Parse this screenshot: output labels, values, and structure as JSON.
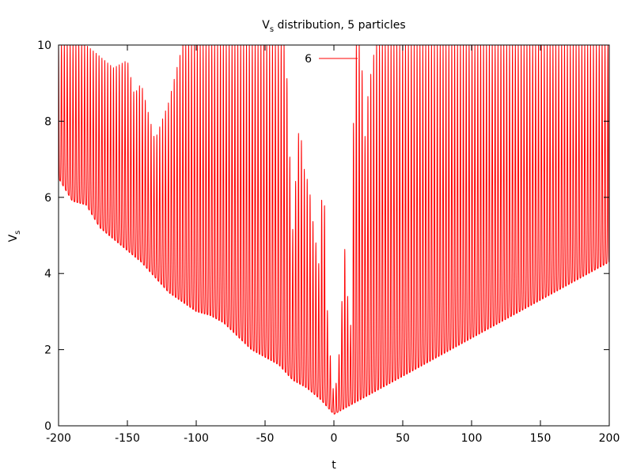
{
  "chart_data": {
    "type": "line",
    "title": {
      "main": "V",
      "sub": "s",
      "rest": " distribution, 5 particles"
    },
    "xlabel": "t",
    "ylabel": {
      "main": "V",
      "sub": "s"
    },
    "xlim": [
      -200,
      200
    ],
    "ylim": [
      0,
      10
    ],
    "xticks": [
      -200,
      -150,
      -100,
      -50,
      0,
      50,
      100,
      150,
      200
    ],
    "xtick_labels": [
      "-200",
      "-150",
      "-100",
      "-50",
      "0",
      "50",
      "100",
      "150",
      "200"
    ],
    "yticks": [
      0,
      2,
      4,
      6,
      8,
      10
    ],
    "ytick_labels": [
      "0",
      "2",
      "4",
      "6",
      "8",
      "10"
    ],
    "grid": false,
    "legend_position": "top-center",
    "series": [
      {
        "name": "6",
        "color": "#ff0000",
        "minima": [
          [
            -200,
            6.5
          ],
          [
            -190,
            5.9
          ],
          [
            -180,
            5.8
          ],
          [
            -170,
            5.2
          ],
          [
            -160,
            4.9
          ],
          [
            -150,
            4.6
          ],
          [
            -140,
            4.3
          ],
          [
            -130,
            3.9
          ],
          [
            -120,
            3.5
          ],
          [
            -100,
            3.0
          ],
          [
            -90,
            2.9
          ],
          [
            -80,
            2.7
          ],
          [
            -60,
            2.0
          ],
          [
            -40,
            1.6
          ],
          [
            -30,
            1.2
          ],
          [
            -20,
            1.0
          ],
          [
            -10,
            0.7
          ],
          [
            0,
            0.3
          ],
          [
            5,
            0.4
          ],
          [
            50,
            1.3
          ],
          [
            100,
            2.3
          ],
          [
            150,
            3.3
          ],
          [
            200,
            4.3
          ]
        ],
        "peaks": [
          [
            -200,
            10
          ],
          [
            -190,
            10
          ],
          [
            -180,
            10
          ],
          [
            -170,
            9.7
          ],
          [
            -160,
            9.4
          ],
          [
            -150,
            9.6
          ],
          [
            -145,
            8.7
          ],
          [
            -140,
            9.0
          ],
          [
            -130,
            7.5
          ],
          [
            -120,
            8.5
          ],
          [
            -110,
            10
          ],
          [
            -100,
            10
          ],
          [
            -80,
            10
          ],
          [
            -60,
            10
          ],
          [
            -45,
            10
          ],
          [
            -35,
            10
          ],
          [
            -30,
            5.1
          ],
          [
            -25,
            8.1
          ],
          [
            -22,
            6.8
          ],
          [
            -18,
            6.3
          ],
          [
            -15,
            5.3
          ],
          [
            -10,
            4.0
          ],
          [
            -8,
            7.5
          ],
          [
            -5,
            3.2
          ],
          [
            -2,
            1.5
          ],
          [
            0,
            0.8
          ],
          [
            3,
            1.4
          ],
          [
            6,
            3.4
          ],
          [
            8,
            4.7
          ],
          [
            10,
            3.4
          ],
          [
            12,
            2.3
          ],
          [
            15,
            10
          ],
          [
            20,
            10
          ],
          [
            22,
            7.3
          ],
          [
            25,
            8.8
          ],
          [
            30,
            10
          ],
          [
            50,
            10
          ],
          [
            100,
            10
          ],
          [
            150,
            10
          ],
          [
            200,
            10
          ]
        ],
        "period": 2.1
      }
    ]
  }
}
